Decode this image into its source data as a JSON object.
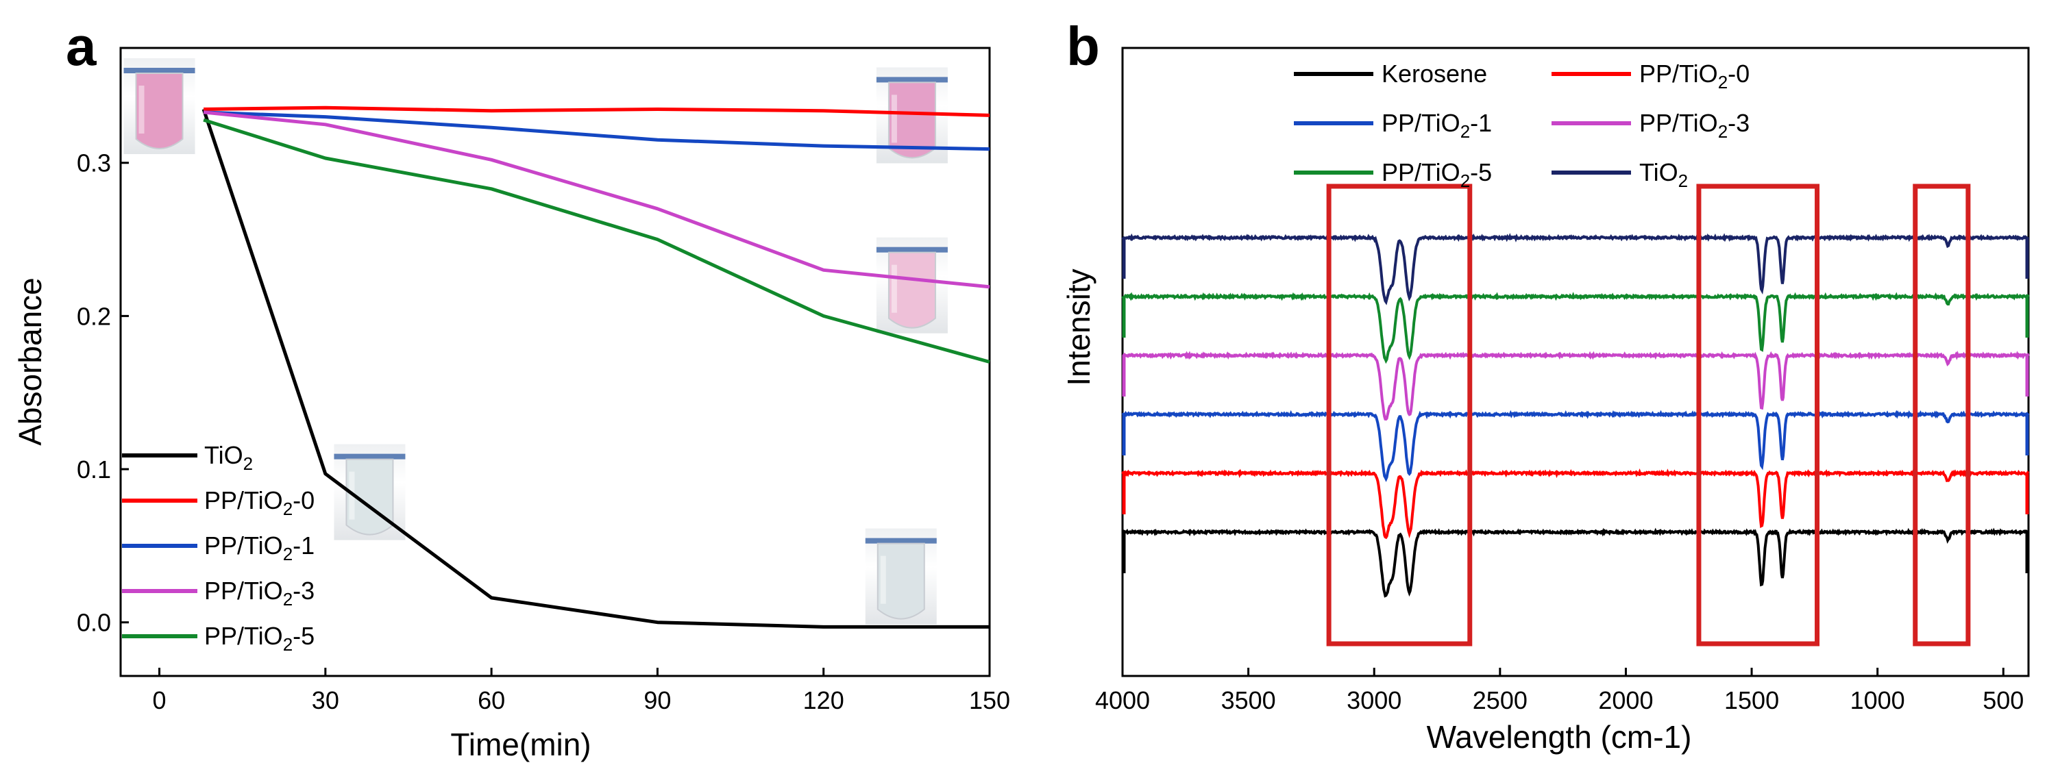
{
  "chart_data": [
    {
      "panel": "a",
      "type": "line",
      "xlabel": "Time(min)",
      "ylabel": "Absorbance",
      "xlim": [
        -7,
        150
      ],
      "ylim": [
        -0.035,
        0.375
      ],
      "x_ticks": [
        0,
        30,
        60,
        90,
        120,
        150
      ],
      "y_ticks": [
        0.0,
        0.1,
        0.2,
        0.3
      ],
      "y_tick_labels": [
        "0.0",
        "0.1",
        "0.2",
        "0.3"
      ],
      "series": [
        {
          "name": "TiO",
          "sub": "2",
          "after": "",
          "color": "#000000",
          "x": [
            8,
            30,
            60,
            90,
            120,
            150
          ],
          "y": [
            0.335,
            0.097,
            0.016,
            0.0,
            -0.003,
            -0.003
          ]
        },
        {
          "name": "PP/TiO",
          "sub": "2",
          "after": "-0",
          "color": "#ff0000",
          "x": [
            8,
            30,
            60,
            90,
            120,
            150
          ],
          "y": [
            0.335,
            0.336,
            0.334,
            0.335,
            0.334,
            0.331
          ]
        },
        {
          "name": "PP/TiO",
          "sub": "2",
          "after": "-1",
          "color": "#1447c2",
          "x": [
            8,
            30,
            60,
            90,
            120,
            150
          ],
          "y": [
            0.333,
            0.33,
            0.323,
            0.315,
            0.311,
            0.309
          ]
        },
        {
          "name": "PP/TiO",
          "sub": "2",
          "after": "-3",
          "color": "#c844c8",
          "x": [
            8,
            30,
            60,
            90,
            120,
            150
          ],
          "y": [
            0.333,
            0.325,
            0.302,
            0.27,
            0.23,
            0.219
          ]
        },
        {
          "name": "PP/TiO",
          "sub": "2",
          "after": "-5",
          "color": "#11892c",
          "x": [
            8,
            30,
            60,
            90,
            120,
            150
          ],
          "y": [
            0.328,
            0.303,
            0.283,
            0.25,
            0.2,
            0.17
          ]
        }
      ],
      "legend_position": "bottom-left",
      "photo_insets": [
        {
          "t": 0,
          "a": 0.337,
          "tint": "#e49dc4",
          "pink": true
        },
        {
          "t": 136,
          "a": 0.331,
          "tint": "#e4a0c8",
          "pink": true
        },
        {
          "t": 136,
          "a": 0.22,
          "tint": "#eec0d8",
          "pink": true
        },
        {
          "t": 38,
          "a": 0.085,
          "tint": "#dce5e7",
          "pink": false
        },
        {
          "t": 134,
          "a": 0.03,
          "tint": "#dbe3e6",
          "pink": false
        }
      ]
    },
    {
      "panel": "b",
      "type": "line",
      "xlabel": "Wavelength (cm-1)",
      "ylabel": "Intensity",
      "xlim": [
        4000,
        400
      ],
      "x_ticks": [
        4000,
        3500,
        3000,
        2500,
        2000,
        1500,
        1000,
        500
      ],
      "series": [
        {
          "name": "Kerosene",
          "sub": "",
          "after": "",
          "color": "#000000",
          "offset": 0
        },
        {
          "name": "PP/TiO",
          "sub": "2",
          "after": "-0",
          "color": "#ff0000",
          "offset": 1
        },
        {
          "name": "PP/TiO",
          "sub": "2",
          "after": "-1",
          "color": "#1447c2",
          "offset": 2
        },
        {
          "name": "PP/TiO",
          "sub": "2",
          "after": "-3",
          "color": "#c844c8",
          "offset": 3
        },
        {
          "name": "PP/TiO",
          "sub": "2",
          "after": "-5",
          "color": "#11892c",
          "offset": 4
        },
        {
          "name": "TiO",
          "sub": "2",
          "after": "",
          "color": "#1a2466",
          "offset": 5
        }
      ],
      "absorption_bands": [
        {
          "center": 2955,
          "depth": 1.0,
          "width": 22
        },
        {
          "center": 2860,
          "depth": 0.95,
          "width": 20
        },
        {
          "center": 2925,
          "depth": 0.55,
          "width": 15
        },
        {
          "center": 1460,
          "depth": 0.85,
          "width": 12
        },
        {
          "center": 1378,
          "depth": 0.72,
          "width": 10
        },
        {
          "center": 720,
          "depth": 0.12,
          "width": 10
        }
      ],
      "highlight_regions": [
        [
          3180,
          2620
        ],
        [
          1710,
          1240
        ],
        [
          850,
          640
        ]
      ],
      "highlight_color": "#d42020",
      "legend_position": "top"
    }
  ],
  "labels": {
    "panel_a": "a",
    "panel_b": "b"
  }
}
